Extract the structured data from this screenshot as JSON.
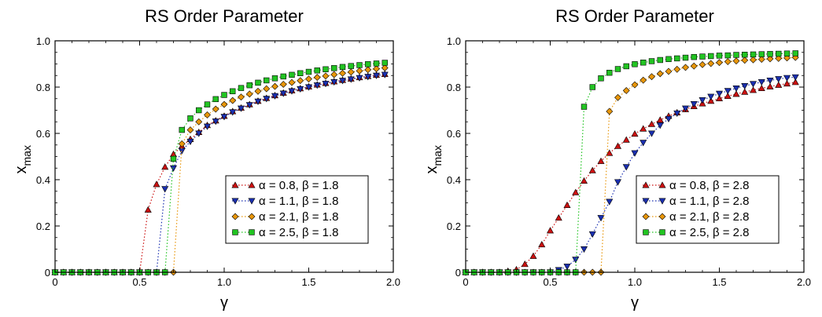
{
  "chart_data": [
    {
      "type": "scatter",
      "title": "RS Order Parameter",
      "xlabel": "γ",
      "ylabel_main": "x",
      "ylabel_sub": "max",
      "xlim": [
        0,
        2.0
      ],
      "ylim": [
        0,
        1.0
      ],
      "xticks": [
        "0",
        "0.5",
        "1.0",
        "1.5",
        "2.0"
      ],
      "yticks": [
        "0",
        "0.2",
        "0.4",
        "0.6",
        "0.8",
        "1.0"
      ],
      "grid": false,
      "legend_position": "lower-right",
      "x": [
        0.0,
        0.05,
        0.1,
        0.15,
        0.2,
        0.25,
        0.3,
        0.35,
        0.4,
        0.45,
        0.5,
        0.55,
        0.6,
        0.65,
        0.7,
        0.75,
        0.8,
        0.85,
        0.9,
        0.95,
        1.0,
        1.05,
        1.1,
        1.15,
        1.2,
        1.25,
        1.3,
        1.35,
        1.4,
        1.45,
        1.5,
        1.55,
        1.6,
        1.65,
        1.7,
        1.75,
        1.8,
        1.85,
        1.9,
        1.95
      ],
      "series": [
        {
          "name": "α = 0.8, β = 1.8",
          "color": "#cc1111",
          "marker": "triangle-up",
          "values": [
            0,
            0,
            0,
            0,
            0,
            0,
            0,
            0,
            0,
            0,
            0,
            0.27,
            0.38,
            0.455,
            0.51,
            0.545,
            0.575,
            0.605,
            0.635,
            0.655,
            0.675,
            0.695,
            0.71,
            0.725,
            0.74,
            0.752,
            0.764,
            0.775,
            0.785,
            0.794,
            0.802,
            0.81,
            0.817,
            0.824,
            0.83,
            0.836,
            0.842,
            0.847,
            0.852,
            0.856
          ]
        },
        {
          "name": "α = 1.1, β = 1.8",
          "color": "#1a2fb0",
          "marker": "triangle-down",
          "values": [
            0,
            0,
            0,
            0,
            0,
            0,
            0,
            0,
            0,
            0,
            0,
            0,
            0,
            0.36,
            0.45,
            0.525,
            0.565,
            0.6,
            0.63,
            0.652,
            0.672,
            0.692,
            0.708,
            0.723,
            0.738,
            0.75,
            0.762,
            0.773,
            0.783,
            0.792,
            0.8,
            0.808,
            0.815,
            0.822,
            0.828,
            0.834,
            0.84,
            0.845,
            0.85,
            0.854
          ]
        },
        {
          "name": "α = 2.1, β = 1.8",
          "color": "#e8960a",
          "marker": "diamond",
          "values": [
            0,
            0,
            0,
            0,
            0,
            0,
            0,
            0,
            0,
            0,
            0,
            0,
            0,
            0,
            0,
            0.555,
            0.615,
            0.65,
            0.68,
            0.705,
            0.725,
            0.742,
            0.757,
            0.77,
            0.782,
            0.793,
            0.803,
            0.812,
            0.82,
            0.828,
            0.835,
            0.842,
            0.848,
            0.854,
            0.86,
            0.865,
            0.87,
            0.875,
            0.879,
            0.883
          ]
        },
        {
          "name": "α = 2.5, β = 1.8",
          "color": "#22c422",
          "marker": "square",
          "values": [
            0,
            0,
            0,
            0,
            0,
            0,
            0,
            0,
            0,
            0,
            0,
            0,
            0,
            0,
            0.49,
            0.615,
            0.665,
            0.7,
            0.725,
            0.748,
            0.766,
            0.782,
            0.796,
            0.808,
            0.819,
            0.829,
            0.838,
            0.846,
            0.853,
            0.86,
            0.866,
            0.872,
            0.877,
            0.882,
            0.887,
            0.891,
            0.895,
            0.899,
            0.902,
            0.905
          ]
        }
      ]
    },
    {
      "type": "scatter",
      "title": "RS Order Parameter",
      "xlabel": "γ",
      "ylabel_main": "x",
      "ylabel_sub": "max",
      "xlim": [
        0,
        2.0
      ],
      "ylim": [
        0,
        1.0
      ],
      "xticks": [
        "0",
        "0.5",
        "1.0",
        "1.5",
        "2.0"
      ],
      "yticks": [
        "0",
        "0.2",
        "0.4",
        "0.6",
        "0.8",
        "1.0"
      ],
      "grid": false,
      "legend_position": "lower-right",
      "x": [
        0.0,
        0.05,
        0.1,
        0.15,
        0.2,
        0.25,
        0.3,
        0.35,
        0.4,
        0.45,
        0.5,
        0.55,
        0.6,
        0.65,
        0.7,
        0.75,
        0.8,
        0.85,
        0.9,
        0.95,
        1.0,
        1.05,
        1.1,
        1.15,
        1.2,
        1.25,
        1.3,
        1.35,
        1.4,
        1.45,
        1.5,
        1.55,
        1.6,
        1.65,
        1.7,
        1.75,
        1.8,
        1.85,
        1.9,
        1.95
      ],
      "series": [
        {
          "name": "α = 0.8, β = 2.8",
          "color": "#cc1111",
          "marker": "triangle-up",
          "values": [
            0,
            0,
            0,
            0,
            0,
            0.005,
            0.012,
            0.035,
            0.07,
            0.12,
            0.18,
            0.235,
            0.29,
            0.345,
            0.395,
            0.44,
            0.48,
            0.515,
            0.545,
            0.572,
            0.598,
            0.62,
            0.64,
            0.658,
            0.675,
            0.69,
            0.704,
            0.717,
            0.729,
            0.74,
            0.751,
            0.761,
            0.77,
            0.779,
            0.787,
            0.795,
            0.802,
            0.809,
            0.815,
            0.821
          ]
        },
        {
          "name": "α = 1.1, β = 2.8",
          "color": "#1a2fb0",
          "marker": "triangle-down",
          "values": [
            0,
            0,
            0,
            0,
            0,
            0,
            0,
            0,
            0,
            0,
            0,
            0.01,
            0.025,
            0.055,
            0.1,
            0.165,
            0.235,
            0.305,
            0.39,
            0.455,
            0.515,
            0.56,
            0.6,
            0.635,
            0.663,
            0.687,
            0.708,
            0.727,
            0.744,
            0.759,
            0.772,
            0.784,
            0.795,
            0.805,
            0.814,
            0.822,
            0.829,
            0.835,
            0.84,
            0.843
          ]
        },
        {
          "name": "α = 2.1, β = 2.8",
          "color": "#e8960a",
          "marker": "diamond",
          "values": [
            0,
            0,
            0,
            0,
            0,
            0,
            0,
            0,
            0,
            0,
            0,
            0,
            0,
            0,
            0,
            0,
            0,
            0.695,
            0.755,
            0.785,
            0.81,
            0.83,
            0.845,
            0.858,
            0.868,
            0.877,
            0.885,
            0.891,
            0.897,
            0.902,
            0.906,
            0.91,
            0.913,
            0.916,
            0.918,
            0.92,
            0.922,
            0.924,
            0.926,
            0.928
          ]
        },
        {
          "name": "α = 2.5, β = 2.8",
          "color": "#22c422",
          "marker": "square",
          "values": [
            0,
            0,
            0,
            0,
            0,
            0,
            0,
            0,
            0,
            0,
            0,
            0,
            0,
            0,
            0.715,
            0.8,
            0.838,
            0.862,
            0.878,
            0.89,
            0.899,
            0.906,
            0.912,
            0.917,
            0.921,
            0.924,
            0.927,
            0.93,
            0.932,
            0.934,
            0.936,
            0.937,
            0.939,
            0.94,
            0.941,
            0.942,
            0.943,
            0.944,
            0.945,
            0.946
          ]
        }
      ]
    }
  ]
}
